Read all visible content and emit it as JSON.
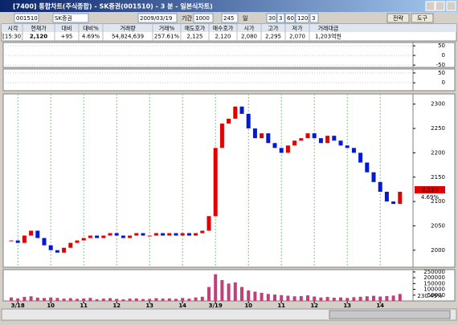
{
  "window": {
    "title": "[7400] 통합차트(주식종합) - SK증권(001510) - 3 분 - 일본식차트)",
    "buttons": [
      "전략",
      "도구"
    ]
  },
  "toolbar": {
    "fields": [
      "001510",
      "SK증권",
      "2009/03/19",
      "기간",
      "1000",
      "245",
      "일",
      "30",
      "3",
      "60",
      "120",
      "3"
    ]
  },
  "quote": {
    "headers": [
      "시각",
      "현재가",
      "대비",
      "대비%",
      "거래량",
      "거래%",
      "매도호가",
      "매수호가",
      "시가",
      "고가",
      "저가",
      "거래대금"
    ],
    "values": [
      "[15:30]",
      "2,120",
      "+95",
      "4.69%",
      "54,824,639",
      "257.61%",
      "2,125",
      "2,120",
      "2,080",
      "2,295",
      "2,070",
      "1,203억원"
    ]
  },
  "chart_data": [
    {
      "type": "indicator",
      "ylim": [
        -62,
        67
      ],
      "yticks": [
        50,
        0,
        -50
      ]
    },
    {
      "type": "indicator",
      "ylim": [
        -40,
        70
      ],
      "yticks": [
        50,
        0
      ]
    },
    {
      "type": "candlestick",
      "ylim": [
        1965,
        2321
      ],
      "yticks": [
        2300,
        2250,
        2200,
        2150,
        2100,
        2050,
        2000
      ],
      "grid": true,
      "up_color": "#e00000",
      "down_color": "#0018d8",
      "values": [
        2020,
        2015,
        2030,
        2040,
        2025,
        2010,
        2000,
        1995,
        2005,
        2015,
        2020,
        2025,
        2030,
        2025,
        2030,
        2035,
        2030,
        2025,
        2030,
        2035,
        2030,
        2030,
        2035,
        2030,
        2035,
        2030,
        2035,
        2030,
        2035,
        2040,
        2070,
        2210,
        2260,
        2270,
        2295,
        2280,
        2250,
        2230,
        2240,
        2220,
        2210,
        2200,
        2215,
        2225,
        2230,
        2240,
        2230,
        2220,
        2235,
        2225,
        2215,
        2210,
        2200,
        2180,
        2160,
        2140,
        2120,
        2100,
        2095,
        2120
      ],
      "xticks": [
        {
          "value": 1,
          "label": "3/18"
        },
        {
          "value": 6,
          "label": "10"
        },
        {
          "value": 11,
          "label": "11"
        },
        {
          "value": 16,
          "label": "12"
        },
        {
          "value": 21,
          "label": "13"
        },
        {
          "value": 26,
          "label": "14"
        },
        {
          "value": 31,
          "label": "3/19"
        },
        {
          "value": 36,
          "label": "10"
        },
        {
          "value": 41,
          "label": "11"
        },
        {
          "value": 46,
          "label": "12"
        },
        {
          "value": 51,
          "label": "13"
        },
        {
          "value": 56,
          "label": "14"
        }
      ],
      "last_label": "2,120",
      "change_label": "4.69%"
    },
    {
      "type": "bar",
      "ylim": [
        0,
        270000
      ],
      "yticks": [
        250000,
        200000,
        150000,
        100000,
        50000
      ],
      "color": "#c0407a",
      "values": [
        30000,
        22000,
        35000,
        40000,
        28000,
        25000,
        30000,
        26000,
        20000,
        24000,
        18000,
        22000,
        26000,
        15000,
        20000,
        24000,
        18000,
        14000,
        20000,
        22000,
        16000,
        18000,
        24000,
        20000,
        22000,
        18000,
        26000,
        20000,
        30000,
        36000,
        120000,
        230000,
        180000,
        150000,
        160000,
        120000,
        90000,
        80000,
        70000,
        60000,
        55000,
        50000,
        45000,
        40000,
        42000,
        48000,
        38000,
        30000,
        34000,
        28000,
        30000,
        26000,
        32000,
        36000,
        40000,
        44000,
        38000,
        42000,
        46000,
        60000
      ],
      "last_label": "230.49%"
    }
  ]
}
